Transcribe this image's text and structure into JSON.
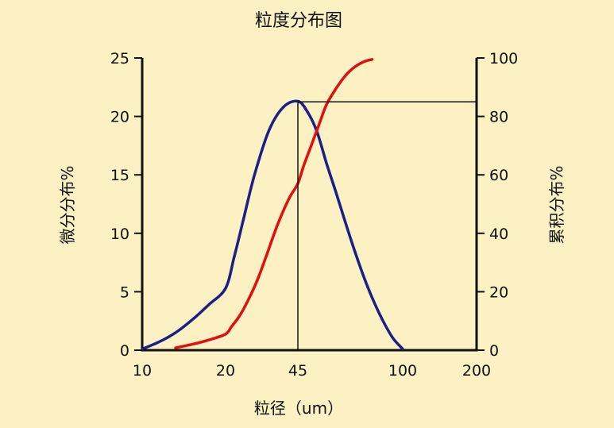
{
  "chart_data": {
    "type": "line",
    "title": "粒度分布图",
    "xlabel": "粒径（um）",
    "ylabel_left": "微分分布%",
    "ylabel_right": "累积分布%",
    "x_ticks": [
      "10",
      "20",
      "45",
      "100",
      "200"
    ],
    "y_left_ticks": [
      "0",
      "5",
      "10",
      "15",
      "20",
      "25"
    ],
    "y_right_ticks": [
      "0",
      "20",
      "40",
      "60",
      "80",
      "100"
    ],
    "y_left_range": [
      0,
      25
    ],
    "y_right_range": [
      0,
      100
    ],
    "grid": false,
    "colors": {
      "differential": "#1c1f86",
      "cumulative": "#e01010",
      "background": "#fbf1c2"
    },
    "marker": {
      "x": 45,
      "y_left": 21.3,
      "y_right": 85
    },
    "series": [
      {
        "key": "differential",
        "axis": "left",
        "x": [
          10,
          12,
          14,
          16,
          18,
          20,
          23,
          26,
          30,
          35,
          40,
          45,
          50,
          55,
          60,
          65,
          70,
          75,
          80,
          85,
          90,
          95,
          100
        ],
        "y": [
          0.1,
          0.7,
          1.5,
          2.6,
          3.9,
          5.3,
          8.0,
          11.0,
          15.0,
          18.8,
          20.8,
          21.3,
          20.4,
          18.7,
          16.0,
          13.5,
          10.9,
          8.4,
          6.1,
          4.1,
          2.4,
          1.0,
          0.1
        ]
      },
      {
        "key": "cumulative",
        "axis": "right",
        "x": [
          14,
          16,
          18,
          20,
          22,
          25,
          28,
          31,
          34,
          38,
          42,
          45,
          48,
          52,
          56,
          60,
          65,
          70,
          75,
          80,
          84
        ],
        "y": [
          0.8,
          2,
          3.5,
          5.5,
          8,
          12,
          17.5,
          24,
          32,
          43,
          52,
          57,
          63,
          70,
          77,
          84,
          89.5,
          94,
          97,
          98.8,
          99.5
        ]
      }
    ]
  }
}
